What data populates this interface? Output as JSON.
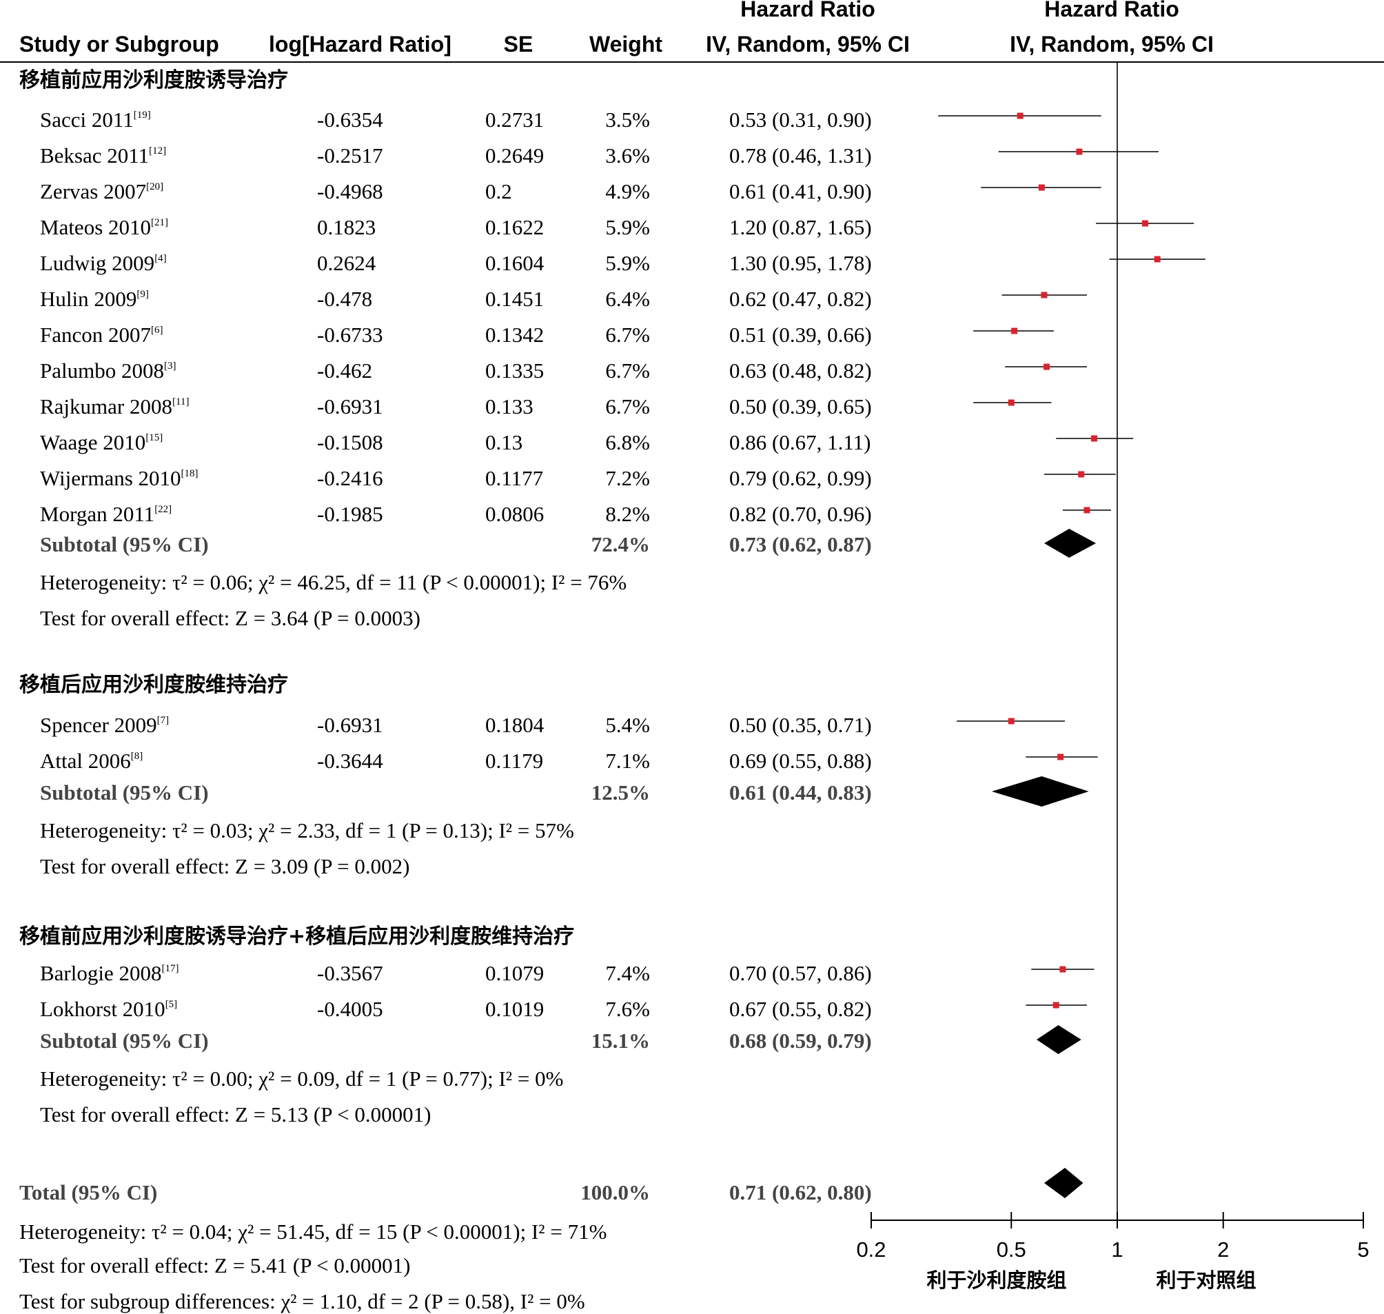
{
  "header": {
    "study": "Study or Subgroup",
    "loghr": "log[Hazard Ratio]",
    "se": "SE",
    "weight": "Weight",
    "hr_title": "Hazard Ratio",
    "hr_method": "IV, Random, 95% CI",
    "plot_title": "Hazard Ratio",
    "plot_method": "IV, Random, 95% CI"
  },
  "chart_data": {
    "type": "forest",
    "x_scale": "log",
    "xlim": [
      0.2,
      5
    ],
    "reference_line": 1,
    "ticks": [
      "0.2",
      "0.5",
      "1",
      "2",
      "5"
    ],
    "favours_left": "利于沙利度胺组",
    "favours_right": "利于对照组",
    "marker_color": "#d9232e",
    "groups": [
      {
        "title": "移植前应用沙利度胺诱导治疗",
        "studies": [
          {
            "name": "Sacci 2011",
            "ref": "[19]",
            "loghr": "-0.6354",
            "se": "0.2731",
            "weight": "3.5%",
            "ci_text": "0.53 (0.31, 0.90)",
            "hr": 0.53,
            "lo": 0.31,
            "hi": 0.9
          },
          {
            "name": "Beksac 2011",
            "ref": "[12]",
            "loghr": "-0.2517",
            "se": "0.2649",
            "weight": "3.6%",
            "ci_text": "0.78 (0.46, 1.31)",
            "hr": 0.78,
            "lo": 0.46,
            "hi": 1.31
          },
          {
            "name": "Zervas 2007",
            "ref": "[20]",
            "loghr": "-0.4968",
            "se": "0.2",
            "weight": "4.9%",
            "ci_text": "0.61 (0.41, 0.90)",
            "hr": 0.61,
            "lo": 0.41,
            "hi": 0.9
          },
          {
            "name": "Mateos 2010",
            "ref": "[21]",
            "loghr": "0.1823",
            "se": "0.1622",
            "weight": "5.9%",
            "ci_text": "1.20 (0.87, 1.65)",
            "hr": 1.2,
            "lo": 0.87,
            "hi": 1.65
          },
          {
            "name": "Ludwig 2009",
            "ref": "[4]",
            "loghr": "0.2624",
            "se": "0.1604",
            "weight": "5.9%",
            "ci_text": "1.30 (0.95, 1.78)",
            "hr": 1.3,
            "lo": 0.95,
            "hi": 1.78
          },
          {
            "name": "Hulin 2009",
            "ref": "[9]",
            "loghr": "-0.478",
            "se": "0.1451",
            "weight": "6.4%",
            "ci_text": "0.62 (0.47, 0.82)",
            "hr": 0.62,
            "lo": 0.47,
            "hi": 0.82
          },
          {
            "name": "Fancon 2007",
            "ref": "[6]",
            "loghr": "-0.6733",
            "se": "0.1342",
            "weight": "6.7%",
            "ci_text": "0.51 (0.39, 0.66)",
            "hr": 0.51,
            "lo": 0.39,
            "hi": 0.66
          },
          {
            "name": "Palumbo 2008",
            "ref": "[3]",
            "loghr": "-0.462",
            "se": "0.1335",
            "weight": "6.7%",
            "ci_text": "0.63 (0.48, 0.82)",
            "hr": 0.63,
            "lo": 0.48,
            "hi": 0.82
          },
          {
            "name": "Rajkumar 2008",
            "ref": "[11]",
            "loghr": "-0.6931",
            "se": "0.133",
            "weight": "6.7%",
            "ci_text": "0.50 (0.39, 0.65)",
            "hr": 0.5,
            "lo": 0.39,
            "hi": 0.65
          },
          {
            "name": "Waage 2010",
            "ref": "[15]",
            "loghr": "-0.1508",
            "se": "0.13",
            "weight": "6.8%",
            "ci_text": "0.86 (0.67, 1.11)",
            "hr": 0.86,
            "lo": 0.67,
            "hi": 1.11
          },
          {
            "name": "Wijermans 2010",
            "ref": "[18]",
            "loghr": "-0.2416",
            "se": "0.1177",
            "weight": "7.2%",
            "ci_text": "0.79 (0.62, 0.99)",
            "hr": 0.79,
            "lo": 0.62,
            "hi": 0.99
          },
          {
            "name": "Morgan 2011",
            "ref": "[22]",
            "loghr": "-0.1985",
            "se": "0.0806",
            "weight": "8.2%",
            "ci_text": "0.82 (0.70, 0.96)",
            "hr": 0.82,
            "lo": 0.7,
            "hi": 0.96
          }
        ],
        "subtotal": {
          "label": "Subtotal (95% CI)",
          "weight": "72.4%",
          "ci_text": "0.73 (0.62, 0.87)",
          "hr": 0.73,
          "lo": 0.62,
          "hi": 0.87
        },
        "heterogeneity": "Heterogeneity: τ² = 0.06; χ² = 46.25, df = 11 (P < 0.00001); I² = 76%",
        "overall": "Test for overall effect: Z = 3.64 (P = 0.0003)"
      },
      {
        "title": "移植后应用沙利度胺维持治疗",
        "studies": [
          {
            "name": "Spencer 2009",
            "ref": "[7]",
            "loghr": "-0.6931",
            "se": "0.1804",
            "weight": "5.4%",
            "ci_text": "0.50 (0.35, 0.71)",
            "hr": 0.5,
            "lo": 0.35,
            "hi": 0.71
          },
          {
            "name": "Attal 2006",
            "ref": "[8]",
            "loghr": "-0.3644",
            "se": "0.1179",
            "weight": "7.1%",
            "ci_text": "0.69 (0.55, 0.88)",
            "hr": 0.69,
            "lo": 0.55,
            "hi": 0.88
          }
        ],
        "subtotal": {
          "label": "Subtotal (95% CI)",
          "weight": "12.5%",
          "ci_text": "0.61 (0.44, 0.83)",
          "hr": 0.61,
          "lo": 0.44,
          "hi": 0.83
        },
        "heterogeneity": "Heterogeneity: τ² = 0.03; χ² = 2.33, df = 1 (P = 0.13); I² = 57%",
        "overall": "Test for overall effect: Z = 3.09 (P = 0.002)"
      },
      {
        "title": "移植前应用沙利度胺诱导治疗+移植后应用沙利度胺维持治疗",
        "studies": [
          {
            "name": "Barlogie 2008",
            "ref": "[17]",
            "loghr": "-0.3567",
            "se": "0.1079",
            "weight": "7.4%",
            "ci_text": "0.70 (0.57, 0.86)",
            "hr": 0.7,
            "lo": 0.57,
            "hi": 0.86
          },
          {
            "name": "Lokhorst 2010",
            "ref": "[5]",
            "loghr": "-0.4005",
            "se": "0.1019",
            "weight": "7.6%",
            "ci_text": "0.67 (0.55, 0.82)",
            "hr": 0.67,
            "lo": 0.55,
            "hi": 0.82
          }
        ],
        "subtotal": {
          "label": "Subtotal (95% CI)",
          "weight": "15.1%",
          "ci_text": "0.68 (0.59, 0.79)",
          "hr": 0.68,
          "lo": 0.59,
          "hi": 0.79
        },
        "heterogeneity": "Heterogeneity: τ² = 0.00; χ² = 0.09, df = 1 (P = 0.77); I² = 0%",
        "overall": "Test for overall effect: Z = 5.13 (P < 0.00001)"
      }
    ],
    "total": {
      "label": "Total (95% CI)",
      "weight": "100.0%",
      "ci_text": "0.71 (0.62, 0.80)",
      "hr": 0.71,
      "lo": 0.62,
      "hi": 0.8,
      "heterogeneity": "Heterogeneity: τ² = 0.04; χ² = 51.45, df = 15 (P < 0.00001); I² = 71%",
      "overall": "Test for overall effect: Z = 5.41 (P < 0.00001)",
      "subgroup_diff": "Test for subgroup differences: χ² = 1.10, df = 2 (P = 0.58), I² = 0%"
    }
  }
}
